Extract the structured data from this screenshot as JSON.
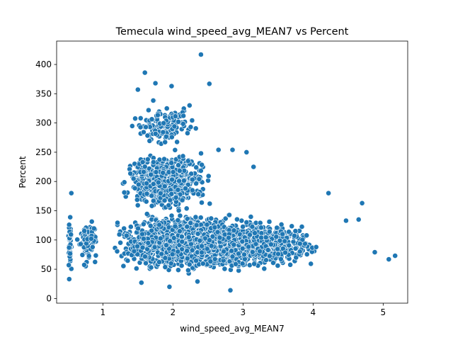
{
  "chart_data": {
    "type": "scatter",
    "title": "Temecula wind_speed_avg_MEAN7 vs Percent",
    "xlabel": "wind_speed_avg_MEAN7",
    "ylabel": "Percent",
    "xlim": [
      0.34,
      5.35
    ],
    "ylim": [
      -8,
      440
    ],
    "xticks": [
      1,
      2,
      3,
      4,
      5
    ],
    "yticks": [
      0,
      50,
      100,
      150,
      200,
      250,
      300,
      350,
      400
    ],
    "grid": false,
    "legend": "none",
    "colors": {
      "point_fill": "#1f77b4",
      "point_edge": "#ffffff"
    },
    "notable_points": [
      {
        "x": 2.4,
        "y": 417
      },
      {
        "x": 1.6,
        "y": 386
      },
      {
        "x": 2.52,
        "y": 367
      },
      {
        "x": 1.75,
        "y": 368
      },
      {
        "x": 1.5,
        "y": 357
      },
      {
        "x": 1.98,
        "y": 363
      },
      {
        "x": 0.55,
        "y": 180
      },
      {
        "x": 4.22,
        "y": 180
      },
      {
        "x": 4.7,
        "y": 163
      },
      {
        "x": 5.17,
        "y": 73
      },
      {
        "x": 5.08,
        "y": 67
      },
      {
        "x": 4.88,
        "y": 79
      },
      {
        "x": 4.65,
        "y": 135
      },
      {
        "x": 4.47,
        "y": 133
      },
      {
        "x": 2.82,
        "y": 14
      },
      {
        "x": 1.95,
        "y": 20
      },
      {
        "x": 1.55,
        "y": 27
      },
      {
        "x": 2.35,
        "y": 29
      },
      {
        "x": 0.52,
        "y": 33
      },
      {
        "x": 3.05,
        "y": 250
      },
      {
        "x": 3.15,
        "y": 225
      },
      {
        "x": 2.65,
        "y": 254
      },
      {
        "x": 2.85,
        "y": 254
      }
    ],
    "clusters": [
      {
        "x": [
          1.0,
          3.6
        ],
        "y": [
          40,
          150
        ],
        "count": 1800
      },
      {
        "x": [
          1.2,
          2.6
        ],
        "y": [
          140,
          260
        ],
        "count": 650
      },
      {
        "x": [
          1.3,
          2.5
        ],
        "y": [
          250,
          340
        ],
        "count": 130
      },
      {
        "x": [
          2.6,
          4.2
        ],
        "y": [
          45,
          140
        ],
        "count": 400
      },
      {
        "x": [
          0.5,
          0.56
        ],
        "y": [
          35,
          145
        ],
        "count": 45
      },
      {
        "x": [
          0.6,
          1.0
        ],
        "y": [
          45,
          140
        ],
        "count": 60
      }
    ]
  }
}
